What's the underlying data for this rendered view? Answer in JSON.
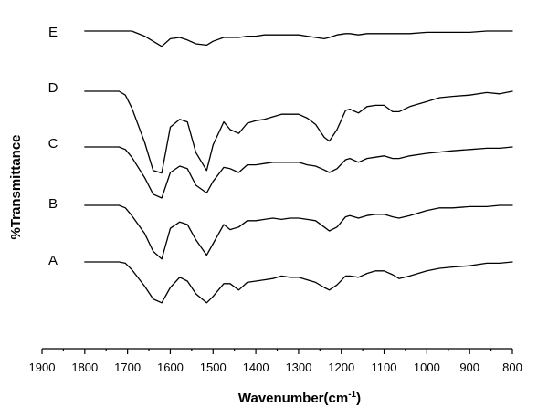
{
  "chart_data": {
    "type": "line",
    "title": "",
    "xlabel": "Wavenumber(cm",
    "xlabel_superscript": "-1",
    "xlabel_suffix": ")",
    "ylabel": "%Transmittance",
    "xlim": [
      1900,
      800
    ],
    "x_reversed": true,
    "y_ticks_shown": false,
    "grid": false,
    "legend": "none",
    "x_ticks": [
      1900,
      1800,
      1700,
      1600,
      1500,
      1400,
      1300,
      1200,
      1100,
      1000,
      900,
      800
    ],
    "x": [
      1800,
      1720,
      1705,
      1690,
      1660,
      1640,
      1620,
      1600,
      1578,
      1560,
      1540,
      1515,
      1500,
      1475,
      1460,
      1440,
      1420,
      1400,
      1380,
      1360,
      1340,
      1320,
      1300,
      1280,
      1260,
      1240,
      1228,
      1210,
      1190,
      1180,
      1160,
      1140,
      1120,
      1100,
      1080,
      1065,
      1040,
      1000,
      970,
      940,
      900,
      860,
      830,
      800
    ],
    "series": [
      {
        "name": "A",
        "values": [
          0.0,
          0.0,
          -0.1,
          -0.6,
          -1.9,
          -2.9,
          -3.2,
          -2.0,
          -1.2,
          -1.5,
          -2.5,
          -3.2,
          -2.7,
          -1.7,
          -1.7,
          -2.2,
          -1.6,
          -1.5,
          -1.4,
          -1.3,
          -1.1,
          -1.2,
          -1.2,
          -1.4,
          -1.6,
          -2.0,
          -2.2,
          -1.8,
          -1.1,
          -1.1,
          -1.2,
          -0.9,
          -0.7,
          -0.7,
          -1.0,
          -1.3,
          -1.1,
          -0.7,
          -0.5,
          -0.4,
          -0.3,
          -0.1,
          -0.1,
          0.0
        ]
      },
      {
        "name": "B",
        "values": [
          0.0,
          0.0,
          -0.2,
          -0.8,
          -2.2,
          -3.6,
          -4.2,
          -1.8,
          -1.3,
          -1.5,
          -2.7,
          -3.9,
          -3.0,
          -1.5,
          -1.9,
          -1.7,
          -1.2,
          -1.2,
          -1.1,
          -1.0,
          -1.1,
          -1.0,
          -1.0,
          -1.1,
          -1.2,
          -1.7,
          -2.0,
          -1.7,
          -0.9,
          -0.8,
          -1.0,
          -0.8,
          -0.7,
          -0.7,
          -0.9,
          -1.0,
          -0.8,
          -0.4,
          -0.2,
          -0.2,
          -0.1,
          -0.1,
          0.0,
          0.0
        ]
      },
      {
        "name": "C",
        "values": [
          0.0,
          0.0,
          -0.2,
          -0.8,
          -2.4,
          -3.7,
          -4.0,
          -2.0,
          -1.5,
          -1.7,
          -3.0,
          -3.6,
          -2.7,
          -1.6,
          -1.7,
          -2.0,
          -1.4,
          -1.4,
          -1.3,
          -1.2,
          -1.2,
          -1.2,
          -1.2,
          -1.4,
          -1.5,
          -1.8,
          -2.0,
          -1.7,
          -1.0,
          -0.9,
          -1.2,
          -0.9,
          -0.8,
          -0.7,
          -0.9,
          -0.9,
          -0.7,
          -0.5,
          -0.4,
          -0.3,
          -0.2,
          -0.1,
          -0.1,
          0.0
        ]
      },
      {
        "name": "D",
        "values": [
          0.0,
          0.0,
          -0.3,
          -1.3,
          -4.0,
          -6.2,
          -6.4,
          -2.8,
          -2.2,
          -2.4,
          -4.8,
          -6.2,
          -4.2,
          -2.4,
          -3.0,
          -3.3,
          -2.5,
          -2.3,
          -2.2,
          -2.0,
          -1.8,
          -1.8,
          -1.8,
          -2.1,
          -2.6,
          -3.6,
          -3.9,
          -3.0,
          -1.5,
          -1.4,
          -1.7,
          -1.2,
          -1.1,
          -1.1,
          -1.6,
          -1.6,
          -1.2,
          -0.8,
          -0.5,
          -0.4,
          -0.3,
          -0.1,
          -0.2,
          0.0
        ]
      },
      {
        "name": "E",
        "values": [
          0.0,
          0.0,
          0.0,
          0.0,
          -0.4,
          -0.8,
          -1.2,
          -0.6,
          -0.5,
          -0.7,
          -1.0,
          -1.1,
          -0.8,
          -0.5,
          -0.5,
          -0.5,
          -0.4,
          -0.4,
          -0.3,
          -0.3,
          -0.3,
          -0.3,
          -0.3,
          -0.4,
          -0.5,
          -0.6,
          -0.5,
          -0.3,
          -0.2,
          -0.2,
          -0.3,
          -0.2,
          -0.2,
          -0.2,
          -0.2,
          -0.2,
          -0.2,
          -0.1,
          -0.1,
          -0.1,
          -0.1,
          0.0,
          0.0,
          0.0
        ]
      }
    ]
  }
}
